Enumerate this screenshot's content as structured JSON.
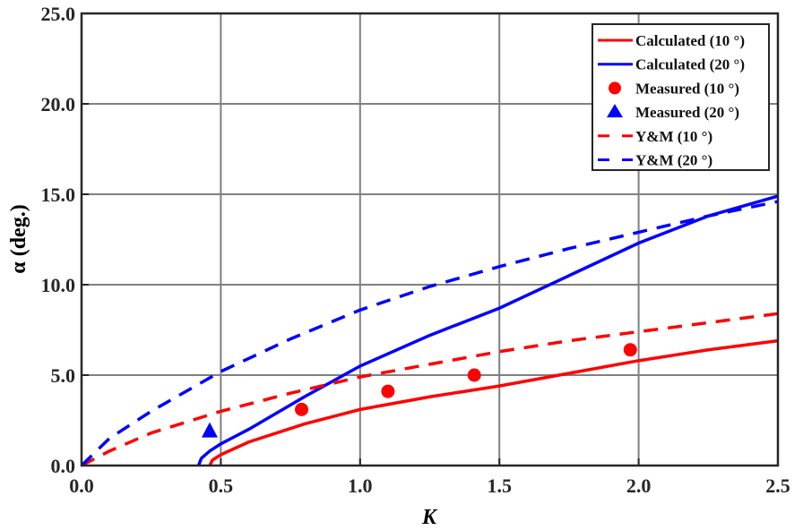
{
  "chart_data": {
    "type": "line",
    "xlabel": "K",
    "ylabel": "α (deg.)",
    "xlim": [
      0,
      2.5
    ],
    "ylim": [
      0,
      25
    ],
    "xticks": [
      "0.0",
      "0.5",
      "1.0",
      "1.5",
      "2.0",
      "2.5"
    ],
    "yticks": [
      "0.0",
      "5.0",
      "10.0",
      "15.0",
      "20.0",
      "25.0"
    ],
    "grid": true,
    "legend_position": "top-right",
    "series": [
      {
        "name": "Calculated (10 °)",
        "color": "#ff0000",
        "style": "solid",
        "marker": "none",
        "x": [
          0.46,
          0.47,
          0.5,
          0.6,
          0.8,
          1.0,
          1.25,
          1.5,
          1.75,
          2.0,
          2.25,
          2.5
        ],
        "y": [
          0,
          0.3,
          0.6,
          1.3,
          2.3,
          3.1,
          3.8,
          4.4,
          5.1,
          5.8,
          6.4,
          6.9
        ]
      },
      {
        "name": "Calculated (20 °)",
        "color": "#0000ff",
        "style": "solid",
        "marker": "none",
        "x": [
          0.42,
          0.43,
          0.46,
          0.5,
          0.6,
          0.8,
          1.0,
          1.25,
          1.5,
          1.75,
          2.0,
          2.25,
          2.5
        ],
        "y": [
          0,
          0.4,
          0.8,
          1.2,
          2.0,
          3.8,
          5.5,
          7.2,
          8.7,
          10.5,
          12.3,
          13.8,
          14.9
        ]
      },
      {
        "name": "Measured (10 °)",
        "color": "#ff0000",
        "style": "none",
        "marker": "circle",
        "x": [
          0.79,
          1.1,
          1.41,
          1.97
        ],
        "y": [
          3.1,
          4.1,
          5.0,
          6.4
        ]
      },
      {
        "name": "Measured (20 °)",
        "color": "#0000ff",
        "style": "none",
        "marker": "triangle",
        "x": [
          0.46
        ],
        "y": [
          1.9
        ]
      },
      {
        "name": "Y&M (10 °)",
        "color": "#ff0000",
        "style": "dashed",
        "marker": "none",
        "x": [
          0,
          0.1,
          0.25,
          0.5,
          0.75,
          1.0,
          1.25,
          1.5,
          1.75,
          2.0,
          2.25,
          2.5
        ],
        "y": [
          0,
          0.8,
          1.8,
          3.0,
          4.0,
          4.9,
          5.6,
          6.3,
          6.9,
          7.4,
          7.9,
          8.4
        ]
      },
      {
        "name": "Y&M (20 °)",
        "color": "#0000ff",
        "style": "dashed",
        "marker": "none",
        "x": [
          0,
          0.1,
          0.25,
          0.5,
          0.75,
          1.0,
          1.25,
          1.5,
          1.75,
          2.0,
          2.25,
          2.5
        ],
        "y": [
          0,
          1.5,
          3.0,
          5.2,
          7.0,
          8.6,
          9.9,
          11.0,
          12.0,
          12.9,
          13.8,
          14.6
        ]
      }
    ]
  }
}
